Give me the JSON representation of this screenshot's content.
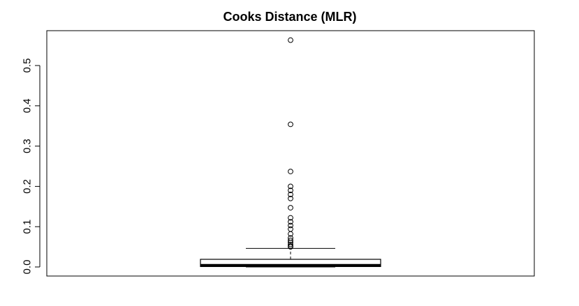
{
  "chart_data": {
    "type": "boxplot",
    "title": "Cooks Distance (MLR)",
    "xlabel": "",
    "ylabel": "",
    "ylim": [
      -0.02,
      0.58
    ],
    "yticks": [
      0.0,
      0.1,
      0.2,
      0.3,
      0.4,
      0.5
    ],
    "ytick_labels": [
      "0.0",
      "0.1",
      "0.2",
      "0.3",
      "0.4",
      "0.5"
    ],
    "grid": false,
    "legend": "none",
    "box": {
      "lower_whisker": 0.0,
      "q1": 0.001,
      "median": 0.004,
      "q3": 0.019,
      "upper_whisker": 0.046
    },
    "outliers": [
      0.563,
      0.354,
      0.237,
      0.2,
      0.19,
      0.18,
      0.17,
      0.147,
      0.122,
      0.112,
      0.103,
      0.094,
      0.082,
      0.072,
      0.066,
      0.061,
      0.056,
      0.052,
      0.05
    ],
    "colors": {
      "box_fill": "#ffffff",
      "stroke": "#000000",
      "background": "#ffffff"
    }
  }
}
